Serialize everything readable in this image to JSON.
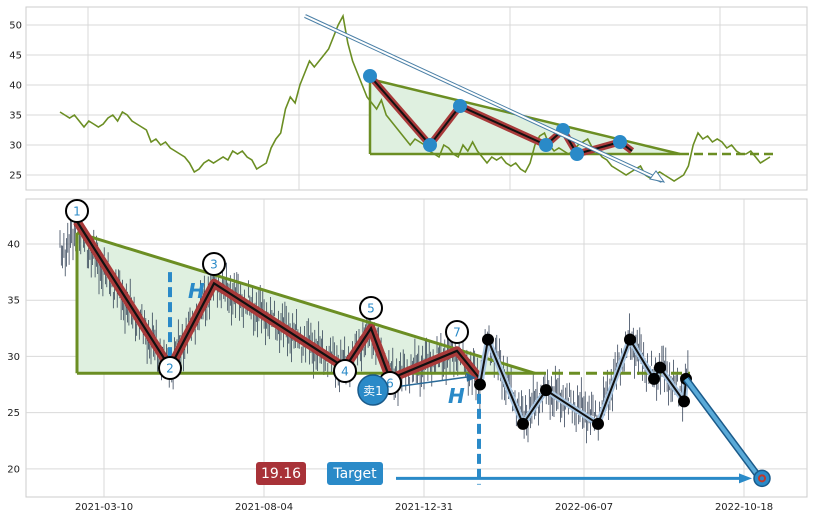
{
  "chart_data": [
    {
      "type": "line",
      "title": "",
      "ylim": [
        22.5,
        53
      ],
      "yticks": [
        25,
        30,
        35,
        40,
        45,
        50
      ],
      "grid": true,
      "series": [
        {
          "values": [
            35.5,
            35,
            34.5,
            35,
            34,
            33,
            34,
            33.5,
            33,
            33.5,
            34.5,
            35,
            34,
            35.5,
            35,
            34,
            33.5,
            33,
            32.5,
            30.5,
            31,
            30,
            30.5,
            29.5,
            29,
            28.5,
            28,
            27,
            25.5,
            26,
            27,
            27.5,
            27,
            27.5,
            28,
            27.5,
            29,
            28.5,
            29,
            28,
            27.5,
            26,
            26.5,
            27,
            29.5,
            31,
            32,
            36,
            38,
            37,
            40,
            42,
            44,
            43,
            44,
            45,
            46,
            48,
            50,
            51.5,
            47,
            44,
            42,
            40,
            38,
            37,
            36,
            37.5,
            35,
            34,
            33,
            32,
            31,
            30,
            31,
            30.5,
            30,
            29,
            28.5,
            28,
            30,
            29.5,
            28.5,
            28,
            30,
            29,
            30.5,
            29,
            28,
            27,
            28,
            27.5,
            28,
            27,
            26.5,
            27,
            26,
            25.5,
            27,
            30,
            31.5,
            32,
            30,
            29,
            29.5,
            29,
            28.5,
            29,
            30,
            30.5,
            31,
            29.5,
            29,
            28,
            27.5,
            26.5,
            26,
            25.5,
            25,
            25.5,
            26,
            26.5,
            25,
            24.5,
            25,
            25.5,
            25,
            24.5,
            24,
            24.5,
            25,
            26.5,
            30,
            32,
            31,
            31.5,
            30.5,
            31,
            30.5,
            29.5,
            30,
            29,
            28.5,
            28.5,
            29,
            28,
            27,
            27.5,
            28
          ]
        }
      ],
      "markers": [
        41.5,
        30,
        36.5,
        30,
        32.5,
        28.5,
        30.5
      ],
      "triangle": {
        "top": 41,
        "base": 28.5
      },
      "arrow": {
        "from": 51.5,
        "to": 24
      }
    },
    {
      "type": "candlestick",
      "x_ticks": [
        "2021-03-10",
        "2021-08-04",
        "2021-12-31",
        "2022-06-07",
        "2022-10-18"
      ],
      "ylim": [
        17.5,
        44
      ],
      "yticks": [
        20,
        25,
        30,
        35,
        40
      ],
      "grid": true,
      "pivots": [
        {
          "label": "1",
          "y": 42
        },
        {
          "label": "2",
          "y": 28.5
        },
        {
          "label": "3",
          "y": 36.5
        },
        {
          "label": "4",
          "y": 29
        },
        {
          "label": "5",
          "y": 33
        },
        {
          "label": "6",
          "y": 28
        },
        {
          "label": "7",
          "y": 30.5
        }
      ],
      "black_path": [
        27.5,
        31.5,
        24,
        27,
        24,
        31.5,
        28,
        29,
        26,
        28
      ],
      "neckline": 28.5,
      "target_value": 19.16,
      "h_label": "H",
      "badges": {
        "value_label": "19.16",
        "target_label": "Target",
        "sell_label": "卖1"
      }
    }
  ],
  "colors": {
    "price_line": "#6b8e23",
    "triangle": "#6b8e23",
    "fill": "#dff0e0",
    "zigzag_red": "#a83a3a",
    "marker_blue": "#2a8ac8",
    "value_box": "#a83238",
    "target_box": "#2a8ac8"
  }
}
